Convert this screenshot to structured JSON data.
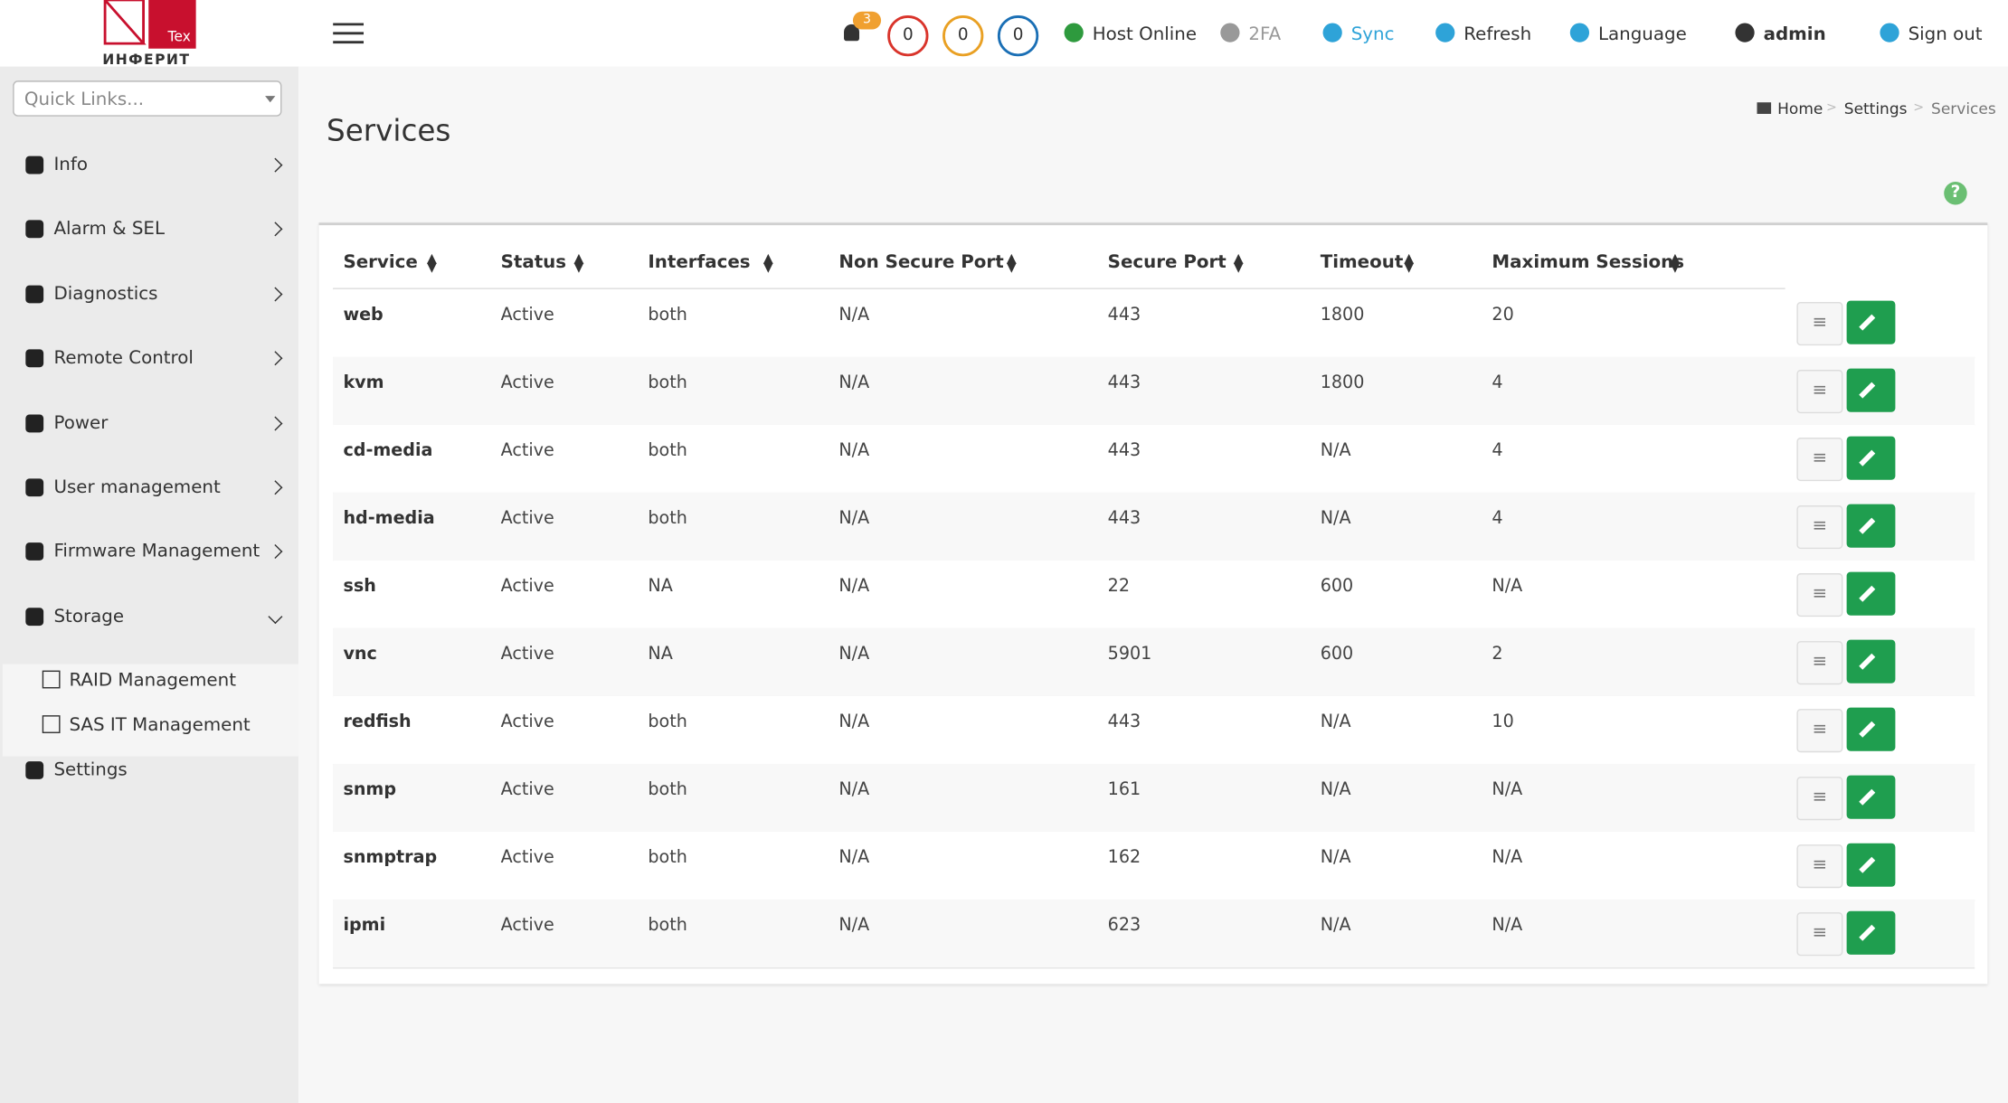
{
  "header": {
    "logo": {
      "brand": "ИНФЕРИТ",
      "tag": "Tex"
    },
    "bell_count": 3,
    "counters": [
      0,
      0,
      0
    ],
    "host_status": "Host Online",
    "twofa": "2FA",
    "sync": "Sync",
    "refresh": "Refresh",
    "language": "Language",
    "user": "admin",
    "sign_out": "Sign out"
  },
  "sidebar": {
    "quick_links": "Quick Links...",
    "items": [
      {
        "label": "Info"
      },
      {
        "label": "Alarm & SEL"
      },
      {
        "label": "Diagnostics"
      },
      {
        "label": "Remote Control"
      },
      {
        "label": "Power"
      },
      {
        "label": "User management"
      },
      {
        "label": "Firmware Management"
      },
      {
        "label": "Storage",
        "children": [
          "RAID Management",
          "SAS IT Management"
        ]
      },
      {
        "label": "Settings"
      }
    ]
  },
  "breadcrumb": [
    "Home",
    "Settings",
    "Services"
  ],
  "page_title": "Services",
  "table": {
    "columns": [
      "Service",
      "Status",
      "Interfaces",
      "Non Secure Port",
      "Secure Port",
      "Timeout",
      "Maximum Sessions"
    ],
    "rows": [
      [
        "web",
        "Active",
        "both",
        "N/A",
        "443",
        "1800",
        "20"
      ],
      [
        "kvm",
        "Active",
        "both",
        "N/A",
        "443",
        "1800",
        "4"
      ],
      [
        "cd-media",
        "Active",
        "both",
        "N/A",
        "443",
        "N/A",
        "4"
      ],
      [
        "hd-media",
        "Active",
        "both",
        "N/A",
        "443",
        "N/A",
        "4"
      ],
      [
        "ssh",
        "Active",
        "NA",
        "N/A",
        "22",
        "600",
        "N/A"
      ],
      [
        "vnc",
        "Active",
        "NA",
        "N/A",
        "5901",
        "600",
        "2"
      ],
      [
        "redfish",
        "Active",
        "both",
        "N/A",
        "443",
        "N/A",
        "10"
      ],
      [
        "snmp",
        "Active",
        "both",
        "N/A",
        "161",
        "N/A",
        "N/A"
      ],
      [
        "snmptrap",
        "Active",
        "both",
        "N/A",
        "162",
        "N/A",
        "N/A"
      ],
      [
        "ipmi",
        "Active",
        "both",
        "N/A",
        "623",
        "N/A",
        "N/A"
      ]
    ]
  }
}
